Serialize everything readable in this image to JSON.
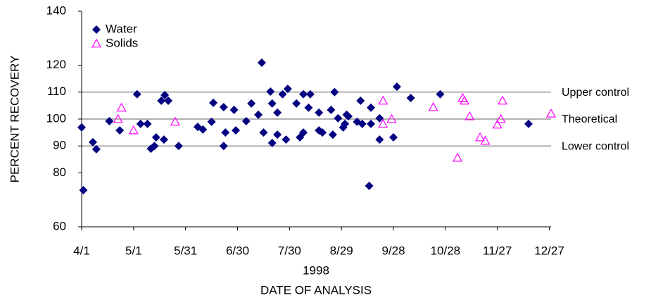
{
  "chart_data": {
    "type": "scatter",
    "ylabel": "PERCENT RECOVERY",
    "xlabel_year": "1998",
    "xlabel": "DATE OF ANALYSIS",
    "xlim": [
      0,
      271
    ],
    "xticks": [
      {
        "value": 0,
        "label": "4/1"
      },
      {
        "value": 30,
        "label": "5/1"
      },
      {
        "value": 60,
        "label": "5/31"
      },
      {
        "value": 90,
        "label": "6/30"
      },
      {
        "value": 120,
        "label": "7/30"
      },
      {
        "value": 150,
        "label": "8/29"
      },
      {
        "value": 180,
        "label": "9/28"
      },
      {
        "value": 210,
        "label": "10/28"
      },
      {
        "value": 240,
        "label": "11/27"
      },
      {
        "value": 270,
        "label": "12/27"
      }
    ],
    "ylim": [
      60,
      140
    ],
    "yticks": [
      60,
      80,
      90,
      100,
      110,
      120,
      140
    ],
    "legend": "upper left",
    "reference_lines": [
      {
        "value": 110,
        "label": "Upper control"
      },
      {
        "value": 100,
        "label": "Theoretical"
      },
      {
        "value": 90,
        "label": "Lower control"
      }
    ],
    "series": [
      {
        "name": "Water",
        "color": "#000080",
        "marker": "diamond",
        "x": [
          0,
          1,
          6.5,
          8.5,
          16,
          22,
          32,
          34,
          38,
          40,
          42,
          43,
          46,
          48,
          50,
          47.5,
          56,
          67,
          70,
          76,
          75,
          82,
          82,
          83,
          88,
          89,
          95,
          98,
          102,
          104,
          105,
          109,
          110,
          113,
          113,
          110,
          116,
          118,
          119,
          124,
          126,
          128,
          128,
          132,
          131,
          137,
          137,
          139,
          144,
          145,
          146,
          148,
          151,
          152,
          153,
          154,
          159,
          161,
          162,
          167,
          167,
          166,
          172,
          172,
          180,
          182,
          190,
          207,
          258
        ],
        "values": [
          96.9,
          73.6,
          91.4,
          88.8,
          99.2,
          95.8,
          109.2,
          98.2,
          98.2,
          89,
          90,
          93.2,
          106.8,
          108.9,
          106.8,
          92.4,
          90,
          97.1,
          96.1,
          106,
          99,
          104.4,
          90,
          95,
          103.4,
          95.8,
          99.2,
          105.8,
          101.6,
          120.9,
          95,
          110.2,
          105.8,
          94.2,
          102.4,
          91.1,
          109.2,
          92.4,
          111.2,
          105.8,
          93.2,
          95,
          109.2,
          109.2,
          104.2,
          102.4,
          95.8,
          95,
          103.4,
          94.2,
          110,
          100.3,
          96.9,
          98.2,
          101.6,
          101,
          99,
          106.8,
          98.2,
          98.2,
          104.2,
          75.2,
          92.4,
          100.3,
          93.2,
          112,
          107.8,
          109.2,
          98.2
        ]
      },
      {
        "name": "Solids",
        "color": "#ff00ff",
        "marker": "triangle",
        "x": [
          21,
          23,
          30,
          54,
          174,
          174,
          179,
          203,
          217,
          220,
          221,
          224,
          230,
          233,
          240,
          242,
          243,
          271
        ],
        "values": [
          100,
          104.2,
          95.8,
          99,
          106.8,
          98.2,
          100,
          104.4,
          85.6,
          107.8,
          106.8,
          101,
          93.2,
          91.9,
          97.9,
          100,
          106.8,
          102
        ]
      }
    ]
  }
}
